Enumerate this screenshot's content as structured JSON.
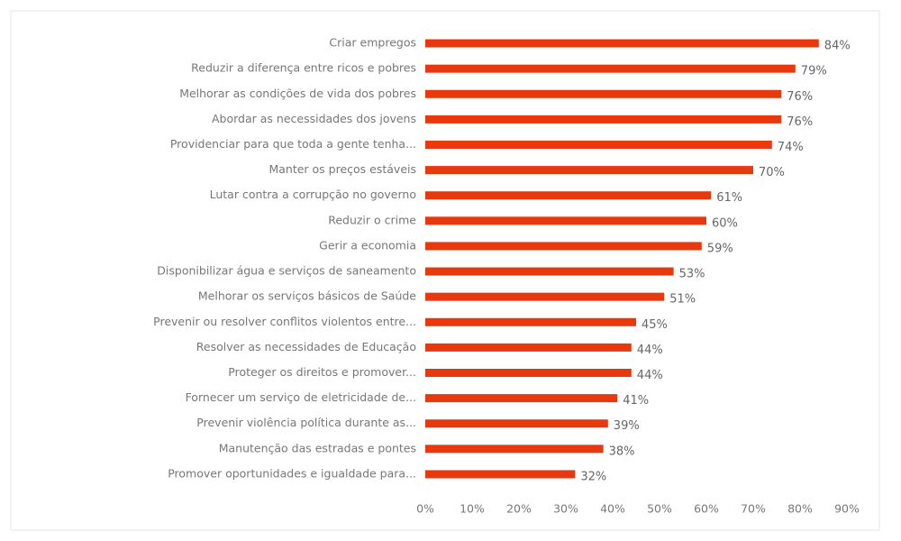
{
  "chart_data": {
    "type": "bar",
    "orientation": "horizontal",
    "categories": [
      "Criar empregos",
      "Reduzir a diferença entre ricos e pobres",
      "Melhorar as condições de vida dos pobres",
      "Abordar as necessidades dos jovens",
      "Providenciar para que toda a gente tenha...",
      "Manter os preços estáveis",
      "Lutar contra a corrupção no governo",
      "Reduzir o crime",
      "Gerir a economia",
      "Disponibilizar água e serviços de saneamento",
      "Melhorar os serviços básicos de Saúde",
      "Prevenir ou resolver conflitos violentos entre...",
      "Resolver as necessidades de Educação",
      "Proteger os direitos e promover...",
      "Fornecer um serviço de eletricidade de...",
      "Prevenir violência política durante as...",
      "Manutenção das estradas e pontes",
      "Promover oportunidades e igualdade para..."
    ],
    "values": [
      84,
      79,
      76,
      76,
      74,
      70,
      61,
      60,
      59,
      53,
      51,
      45,
      44,
      44,
      41,
      39,
      38,
      32
    ],
    "value_labels": [
      "84%",
      "79%",
      "76%",
      "76%",
      "74%",
      "70%",
      "61%",
      "60%",
      "59%",
      "53%",
      "51%",
      "45%",
      "44%",
      "44%",
      "41%",
      "39%",
      "38%",
      "32%"
    ],
    "color": "#e8380d",
    "xlim": [
      0,
      90
    ],
    "xticks": [
      {
        "value": 0,
        "label": "0%"
      },
      {
        "value": 10,
        "label": "10%"
      },
      {
        "value": 20,
        "label": "20%"
      },
      {
        "value": 30,
        "label": "30%"
      },
      {
        "value": 40,
        "label": "40%"
      },
      {
        "value": 50,
        "label": "50%"
      },
      {
        "value": 60,
        "label": "60%"
      },
      {
        "value": 70,
        "label": "70%"
      },
      {
        "value": 80,
        "label": "80%"
      },
      {
        "value": 90,
        "label": "90%"
      }
    ],
    "grid": false
  }
}
